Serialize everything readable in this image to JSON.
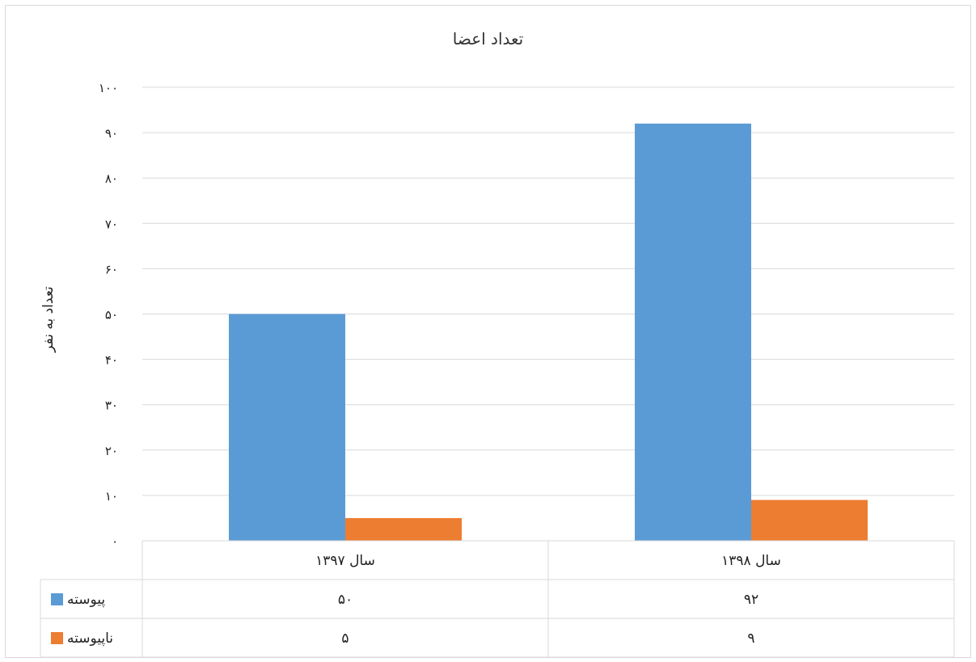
{
  "chart_data": {
    "type": "bar",
    "title": "تعداد اعضا",
    "ylabel": "تعداد به نفر",
    "xlabel": "",
    "categories": [
      "سال ۱۳۹۷",
      "سال ۱۳۹۸"
    ],
    "series": [
      {
        "name": "پیوسته",
        "values": [
          50,
          92
        ],
        "value_labels": [
          "۵۰",
          "۹۲"
        ],
        "color": "#5B9BD5"
      },
      {
        "name": "ناپیوسته",
        "values": [
          5,
          9
        ],
        "value_labels": [
          "۵",
          "۹"
        ],
        "color": "#ED7D31"
      }
    ],
    "ylim": [
      0,
      100
    ],
    "yticks": [
      0,
      10,
      20,
      30,
      40,
      50,
      60,
      70,
      80,
      90,
      100
    ],
    "ytick_labels": [
      "۰",
      "۱۰",
      "۲۰",
      "۳۰",
      "۴۰",
      "۵۰",
      "۶۰",
      "۷۰",
      "۸۰",
      "۹۰",
      "۱۰۰"
    ],
    "grid": true,
    "legend": "data-table-left"
  }
}
